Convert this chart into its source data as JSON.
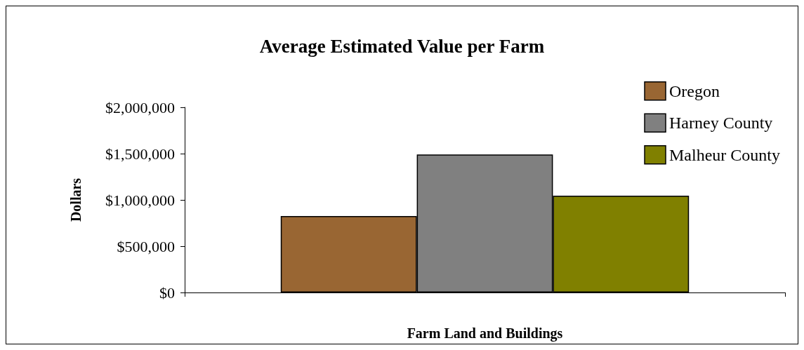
{
  "chart_data": {
    "type": "bar",
    "title": "Average Estimated Value per Farm",
    "xlabel": "Farm Land and Buildings",
    "ylabel": "Dollars",
    "categories": [
      null
    ],
    "series": [
      {
        "name": "Oregon",
        "color": "#996633",
        "values": [
          825000
        ]
      },
      {
        "name": "Harney County",
        "color": "#808080",
        "values": [
          1490000
        ]
      },
      {
        "name": "Malheur County",
        "color": "#808000",
        "values": [
          1045000
        ]
      }
    ],
    "ylim": [
      0,
      2000000
    ],
    "yticks": [
      {
        "value": 0,
        "label": "$0"
      },
      {
        "value": 500000,
        "label": "$500,000"
      },
      {
        "value": 1000000,
        "label": "$1,000,000"
      },
      {
        "value": 1500000,
        "label": "$1,500,000"
      },
      {
        "value": 2000000,
        "label": "$2,000,000"
      }
    ],
    "grid": false,
    "legend": "top right"
  }
}
